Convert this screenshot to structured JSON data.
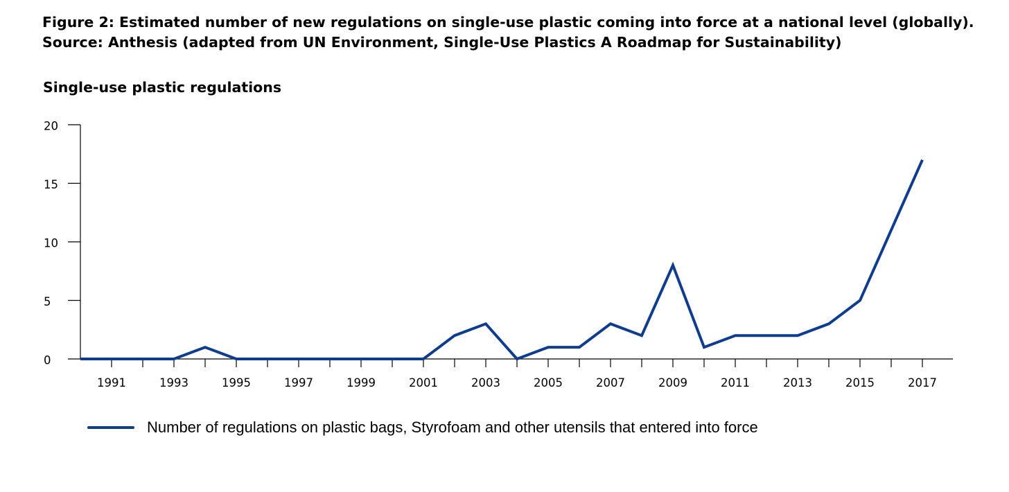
{
  "figure": {
    "title_line1": "Figure 2: Estimated number of new regulations on single-use plastic coming into force at a national level (globally).",
    "title_line2": "Source: Anthesis (adapted from UN Environment, Single-Use Plastics A Roadmap for Sustainability)"
  },
  "colors": {
    "series": "#0f3d8c",
    "axis": "#000000"
  },
  "chart_data": {
    "type": "line",
    "ylabel": "Single-use plastic regulations",
    "xlabel": "",
    "ylim": [
      0,
      20
    ],
    "xlim": [
      1990,
      2017
    ],
    "yticks": [
      0,
      5,
      10,
      15,
      20
    ],
    "xticks": [
      1991,
      1993,
      1995,
      1997,
      1999,
      2001,
      2003,
      2005,
      2007,
      2009,
      2011,
      2013,
      2015,
      2017
    ],
    "grid": false,
    "legend_position": "bottom-left",
    "x": [
      1990,
      1991,
      1992,
      1993,
      1994,
      1995,
      1996,
      1997,
      1998,
      1999,
      2000,
      2001,
      2002,
      2003,
      2004,
      2005,
      2006,
      2007,
      2008,
      2009,
      2010,
      2011,
      2012,
      2013,
      2014,
      2015,
      2016,
      2017
    ],
    "series": [
      {
        "name": "Number of regulations on plastic bags, Styrofoam and other utensils that entered into force",
        "values": [
          0,
          0,
          0,
          0,
          1,
          0,
          0,
          0,
          0,
          0,
          0,
          0,
          2,
          3,
          0,
          1,
          1,
          3,
          2,
          8,
          1,
          2,
          2,
          2,
          3,
          5,
          11,
          17
        ]
      }
    ]
  }
}
